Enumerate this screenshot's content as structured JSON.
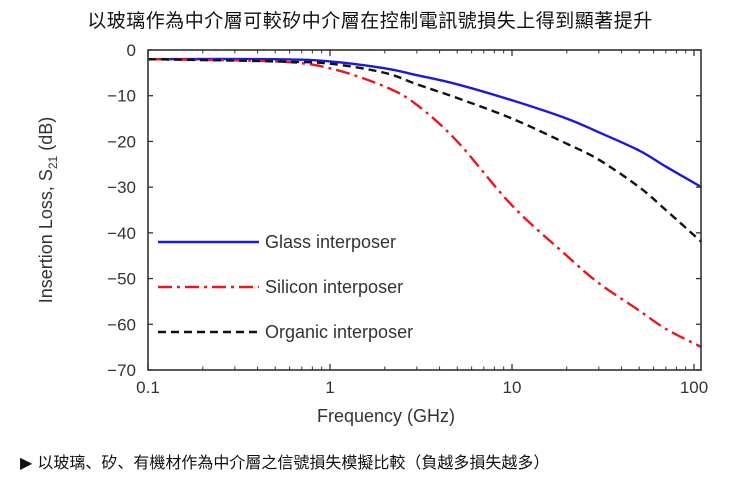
{
  "title": "以玻璃作為中介層可較矽中介層在控制電訊號損失上得到顯著提升",
  "caption": "▶ 以玻璃、矽、有機材作為中介層之信號損失模擬比較（負越多損失越多）",
  "chart_data": {
    "type": "line",
    "title": "以玻璃作為中介層可較矽中介層在控制電訊號損失上得到顯著提升",
    "xlabel": "Frequency (GHz)",
    "ylabel": "Insertion Loss, S21 (dB)",
    "xscale": "log",
    "xlim": [
      0.1,
      110
    ],
    "ylim": [
      -70,
      0
    ],
    "xticks": [
      "0.1",
      "1",
      "10",
      "100"
    ],
    "yticks": [
      "0",
      "−10",
      "−20",
      "−30",
      "−40",
      "−50",
      "−60",
      "−70"
    ],
    "grid": false,
    "legend_position": "lower left (inside plot)",
    "x": [
      0.1,
      0.5,
      1,
      2,
      3,
      5,
      10,
      20,
      30,
      50,
      70,
      110
    ],
    "series": [
      {
        "name": "Glass interposer",
        "color": "#1a1adc",
        "style": "solid",
        "values": [
          -2,
          -2,
          -2.5,
          -4,
          -5.5,
          -7.5,
          -11,
          -15,
          -18,
          -22,
          -25.5,
          -30
        ]
      },
      {
        "name": "Silicon interposer",
        "color": "#e8191e",
        "style": "dash-dot",
        "values": [
          -2,
          -2.5,
          -4,
          -8,
          -12,
          -20,
          -34,
          -45,
          -51,
          -57,
          -61,
          -65
        ]
      },
      {
        "name": "Organic interposer",
        "color": "#111111",
        "style": "dashed",
        "values": [
          -2,
          -2.5,
          -3,
          -5,
          -7.5,
          -10.5,
          -15,
          -20.5,
          -24,
          -30,
          -35,
          -42
        ]
      }
    ]
  }
}
